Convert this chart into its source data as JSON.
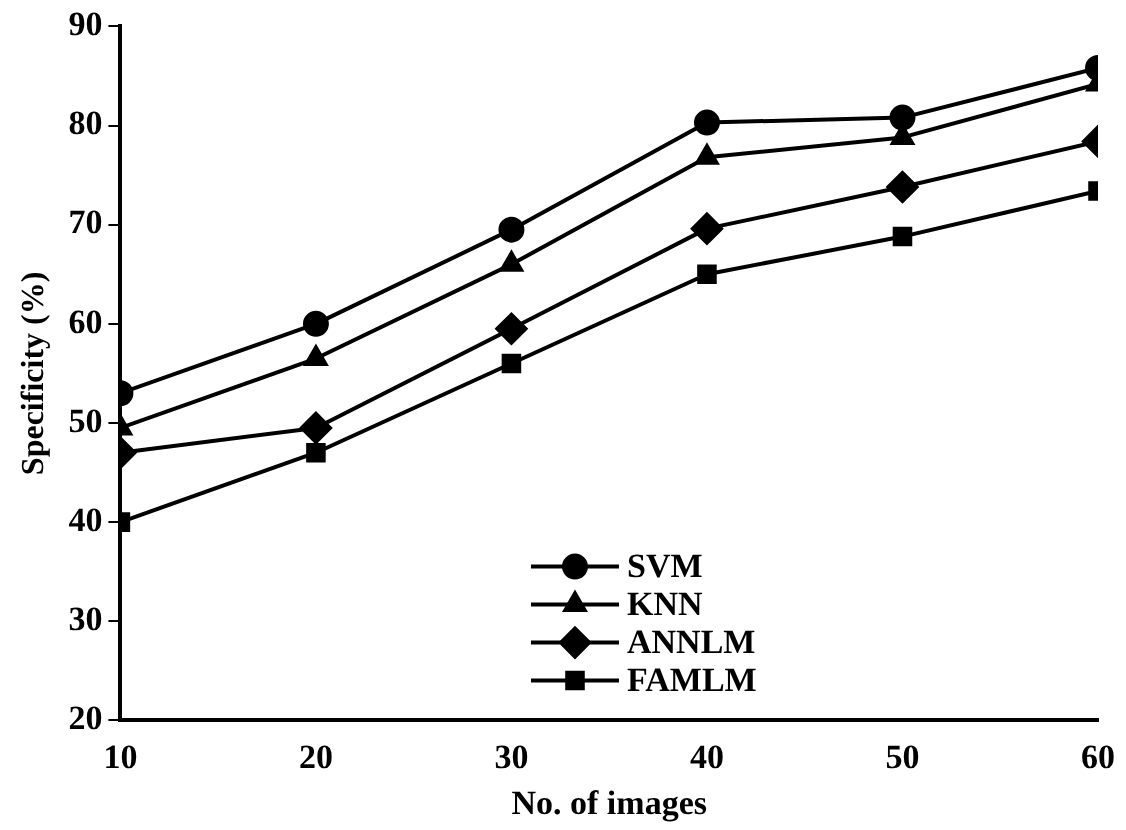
{
  "chart_data": {
    "type": "line",
    "xlabel": "No. of images",
    "ylabel": "Specificity (%)",
    "x": [
      10,
      20,
      30,
      40,
      50,
      60
    ],
    "series": [
      {
        "name": "SVM",
        "color": "#000000",
        "marker": "circle",
        "values": [
          53,
          60,
          69.5,
          80.3,
          80.8,
          85.8
        ]
      },
      {
        "name": "KNN",
        "color": "#000000",
        "marker": "triangle",
        "values": [
          49.5,
          56.5,
          66,
          76.8,
          78.8,
          84.2
        ]
      },
      {
        "name": "ANNLM",
        "color": "#000000",
        "marker": "diamond",
        "values": [
          47,
          49.5,
          59.5,
          69.6,
          73.8,
          78.4
        ]
      },
      {
        "name": "FAMLM",
        "color": "#000000",
        "marker": "square",
        "values": [
          40,
          47,
          56,
          65,
          68.8,
          73.4
        ]
      }
    ],
    "xlim": [
      10,
      60
    ],
    "xticks": [
      10,
      20,
      30,
      40,
      50,
      60
    ],
    "ylim": [
      20,
      90
    ],
    "yticks": [
      20,
      30,
      40,
      50,
      60,
      70,
      80,
      90
    ],
    "grid": false,
    "legend": "bottom"
  }
}
